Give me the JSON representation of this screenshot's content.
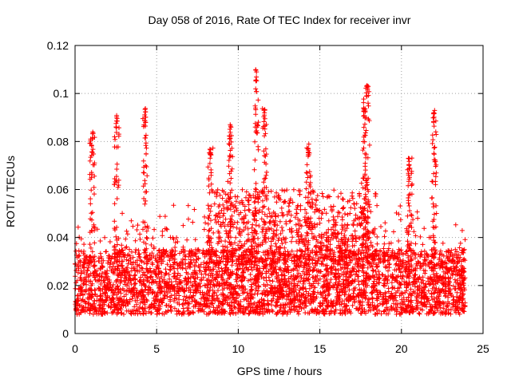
{
  "chart_data": {
    "type": "scatter",
    "title": "Day 058 of 2016, Rate Of TEC Index for receiver invr",
    "xlabel": "GPS time / hours",
    "ylabel": "ROTI / TECUs",
    "xlim": [
      0,
      25
    ],
    "ylim": [
      0,
      0.12
    ],
    "xticks": [
      0,
      5,
      10,
      15,
      20,
      25
    ],
    "yticks": [
      0,
      0.02,
      0.04,
      0.06,
      0.08,
      0.1,
      0.12
    ],
    "xtick_labels": [
      "0",
      "5",
      "10",
      "15",
      "20",
      "25"
    ],
    "ytick_labels": [
      "0",
      "0.02",
      "0.04",
      "0.06",
      "0.08",
      "0.1",
      "0.12"
    ],
    "grid": true,
    "marker": "+",
    "series": [
      {
        "name": "ROTI",
        "color": "#ff0000",
        "x_range": [
          0,
          23.9
        ],
        "baseline_band": [
          0.008,
          0.035
        ],
        "peaks": [
          {
            "x": 1.05,
            "y": 0.084
          },
          {
            "x": 2.55,
            "y": 0.091
          },
          {
            "x": 4.3,
            "y": 0.094
          },
          {
            "x": 8.3,
            "y": 0.08
          },
          {
            "x": 9.5,
            "y": 0.087
          },
          {
            "x": 11.1,
            "y": 0.11
          },
          {
            "x": 11.6,
            "y": 0.094
          },
          {
            "x": 14.3,
            "y": 0.079
          },
          {
            "x": 17.7,
            "y": 0.098
          },
          {
            "x": 17.9,
            "y": 0.104
          },
          {
            "x": 20.5,
            "y": 0.074
          },
          {
            "x": 22.0,
            "y": 0.094
          }
        ]
      }
    ]
  }
}
